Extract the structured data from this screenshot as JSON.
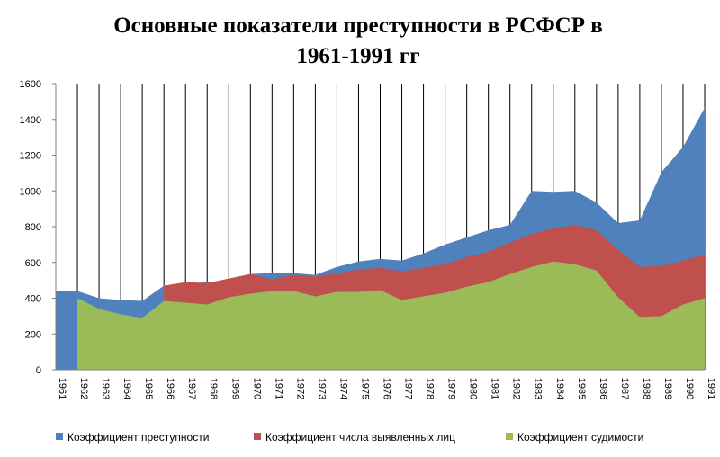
{
  "chart_data": {
    "type": "area",
    "title_line1": "Основные показатели преступности в РСФСР в",
    "title_line2": "1961-1991 гг",
    "categories": [
      "1961",
      "1962",
      "1963",
      "1964",
      "1965",
      "1966",
      "1967",
      "1968",
      "1969",
      "1970",
      "1971",
      "1972",
      "1973",
      "1974",
      "1975",
      "1976",
      "1977",
      "1978",
      "1979",
      "1980",
      "1981",
      "1982",
      "1983",
      "1984",
      "1985",
      "1986",
      "1987",
      "1988",
      "1989",
      "1990",
      "1991"
    ],
    "ylim": [
      0,
      1600
    ],
    "yticks": [
      "0",
      "200",
      "400",
      "600",
      "800",
      "1000",
      "1200",
      "1400",
      "1600"
    ],
    "grid": "vertical",
    "legend_position": "bottom",
    "series": [
      {
        "name": "Коэффициент преступности",
        "color": "#4f81bd",
        "values": [
          440,
          440,
          400,
          390,
          385,
          470,
          480,
          490,
          500,
          535,
          540,
          540,
          530,
          575,
          605,
          620,
          610,
          650,
          700,
          740,
          780,
          810,
          1000,
          995,
          1000,
          935,
          820,
          835,
          1105,
          1245,
          1465
        ]
      },
      {
        "name": "Коэффициент числа выявленных лиц",
        "color": "#c0504d",
        "values": [
          null,
          null,
          null,
          null,
          null,
          470,
          490,
          485,
          510,
          535,
          505,
          530,
          520,
          540,
          560,
          570,
          550,
          570,
          590,
          630,
          660,
          710,
          760,
          790,
          810,
          780,
          670,
          575,
          580,
          610,
          645
        ]
      },
      {
        "name": "Коэффициент судимости",
        "color": "#9bbb59",
        "values": [
          null,
          400,
          340,
          310,
          290,
          385,
          375,
          365,
          405,
          425,
          440,
          440,
          410,
          435,
          435,
          445,
          390,
          410,
          430,
          465,
          490,
          535,
          575,
          605,
          590,
          555,
          405,
          295,
          300,
          365,
          400
        ]
      }
    ]
  }
}
